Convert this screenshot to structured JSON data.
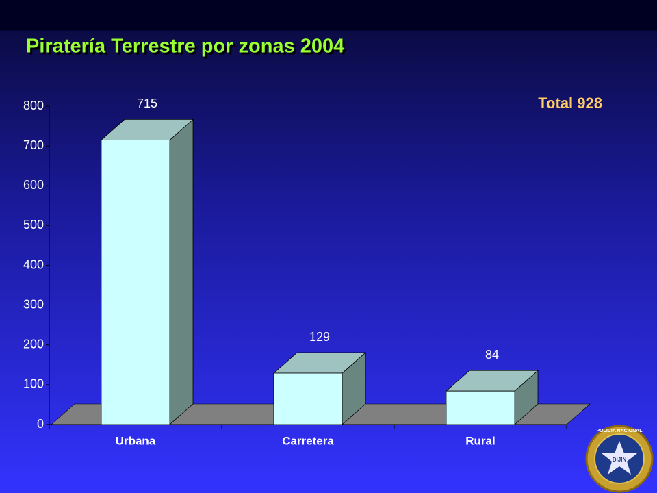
{
  "chart_data": {
    "type": "bar3d",
    "title": "Piratería Terrestre por zonas 2004",
    "annotation": "Total 928",
    "categories": [
      "Urbana",
      "Carretera",
      "Rural"
    ],
    "values": [
      715,
      129,
      84
    ],
    "ylim": [
      0,
      800
    ],
    "yticks": [
      0,
      100,
      200,
      300,
      400,
      500,
      600,
      700,
      800
    ],
    "colors": {
      "front": "#ccffff",
      "top": "#9fc3c0",
      "side": "#6a8680",
      "floor": "#808080"
    }
  },
  "logo": {
    "texts": [
      "POLICIA NACIONAL",
      "DIJIN"
    ]
  }
}
